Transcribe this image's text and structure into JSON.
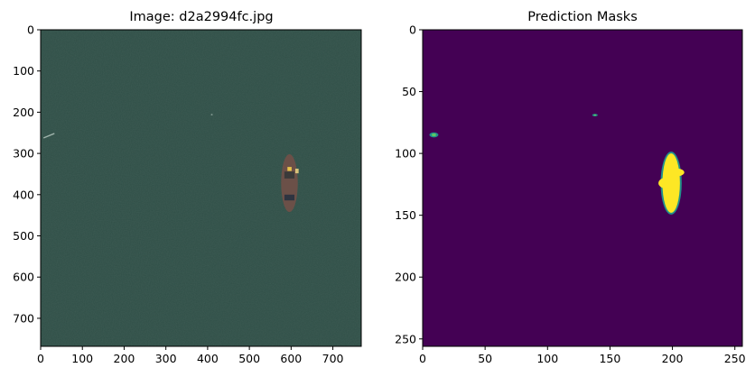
{
  "chart_data": [
    {
      "type": "heatmap",
      "title": "Image: d2a2994fc.jpg",
      "xlim": [
        0,
        768
      ],
      "ylim": [
        768,
        0
      ],
      "xticks": [
        0,
        100,
        200,
        300,
        400,
        500,
        600,
        700
      ],
      "yticks": [
        0,
        100,
        200,
        300,
        400,
        500,
        600,
        700
      ],
      "background_color": "#2f4f47",
      "objects": [
        {
          "kind": "ship",
          "x": 596,
          "y_top": 302,
          "y_bottom": 442,
          "width": 40
        },
        {
          "kind": "wake",
          "x": [
            8,
            32
          ],
          "y": [
            262,
            252
          ]
        },
        {
          "kind": "dot",
          "x": 410,
          "y": 206
        }
      ]
    },
    {
      "type": "heatmap",
      "title": "Prediction Masks",
      "xlim": [
        0,
        256
      ],
      "ylim": [
        256,
        0
      ],
      "xticks": [
        0,
        50,
        100,
        150,
        200,
        250
      ],
      "yticks": [
        0,
        50,
        100,
        150,
        200,
        250
      ],
      "colormap": "viridis",
      "background_color": "#440154",
      "high_color": "#fde725",
      "mid_color": "#21918c",
      "blobs": [
        {
          "x": 199,
          "y_top": 100,
          "y_bottom": 148,
          "width": 14,
          "value": 1.0
        },
        {
          "x": 9,
          "y": 85,
          "value": 0.6
        },
        {
          "x": 138,
          "y": 69,
          "value": 0.4
        }
      ]
    }
  ]
}
